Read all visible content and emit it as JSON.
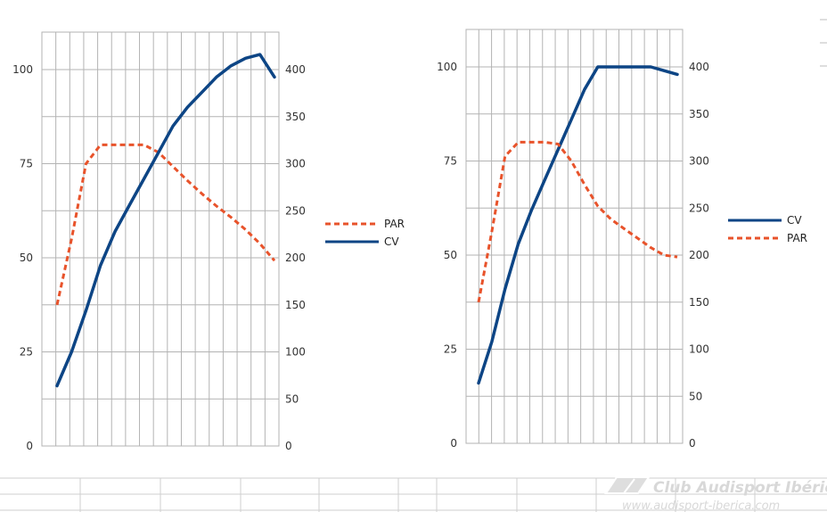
{
  "watermark": {
    "name": "Club Audisport Ibérica",
    "url": "www.audisport-iberica.com"
  },
  "chart_data": [
    {
      "type": "line",
      "grid": true,
      "legend_position": "right",
      "x_count": 16,
      "y_left": {
        "ticks": [
          0,
          25,
          50,
          75,
          100
        ],
        "range": [
          0,
          100
        ]
      },
      "y_right": {
        "ticks": [
          0,
          50,
          100,
          150,
          200,
          250,
          300,
          350,
          400
        ],
        "range": [
          0,
          400
        ]
      },
      "legend_order": [
        "PAR",
        "CV"
      ],
      "series": [
        {
          "name": "PAR",
          "axis": "right",
          "color": "#e8532b",
          "style": "dashed",
          "values": [
            150,
            220,
            300,
            320,
            320,
            320,
            320,
            312,
            297,
            282,
            268,
            255,
            243,
            230,
            215,
            197
          ]
        },
        {
          "name": "CV",
          "axis": "left",
          "color": "#0d4585",
          "style": "solid",
          "values": [
            16,
            25,
            36,
            48,
            57,
            64,
            71,
            78,
            85,
            90,
            94,
            98,
            101,
            103,
            104,
            98
          ]
        }
      ]
    },
    {
      "type": "line",
      "grid": true,
      "legend_position": "right",
      "x_count": 16,
      "y_left": {
        "ticks": [
          0,
          25,
          50,
          75,
          100
        ],
        "range": [
          0,
          100
        ]
      },
      "y_right": {
        "ticks": [
          0,
          50,
          100,
          150,
          200,
          250,
          300,
          350,
          400
        ],
        "range": [
          0,
          400
        ]
      },
      "legend_order": [
        "CV",
        "PAR"
      ],
      "series": [
        {
          "name": "CV",
          "axis": "left",
          "color": "#0d4585",
          "style": "solid",
          "values": [
            16,
            27,
            41,
            53,
            62,
            70,
            78,
            86,
            94,
            100,
            100,
            100,
            100,
            100,
            99,
            98
          ]
        },
        {
          "name": "PAR",
          "axis": "right",
          "color": "#e8532b",
          "style": "dashed",
          "values": [
            150,
            225,
            305,
            320,
            320,
            320,
            318,
            300,
            275,
            252,
            238,
            228,
            218,
            208,
            200,
            198
          ]
        }
      ]
    }
  ]
}
